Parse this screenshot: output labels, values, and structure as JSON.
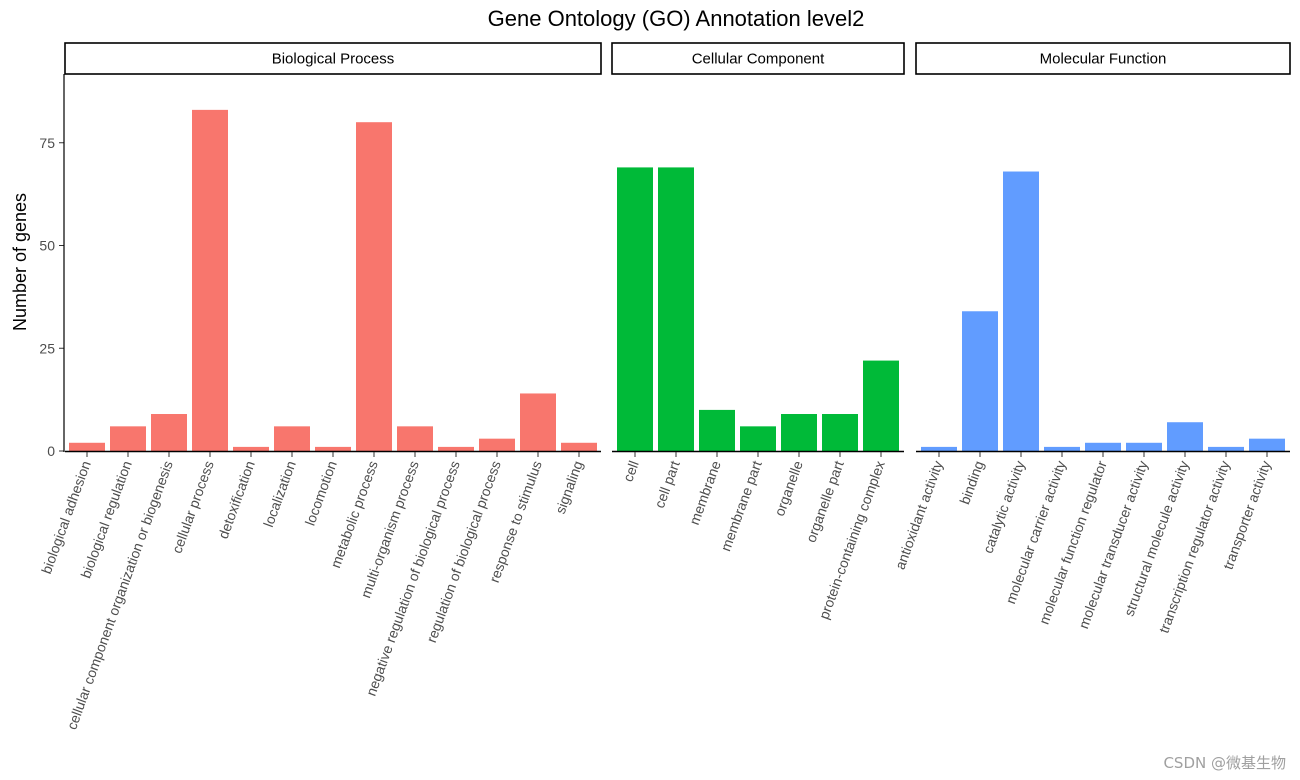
{
  "chart_data": {
    "type": "bar",
    "title": "Gene Ontology (GO) Annotation level2",
    "xlabel": "",
    "ylabel": "Number of genes",
    "ylim": [
      0,
      93
    ],
    "yticks": [
      0,
      25,
      50,
      75
    ],
    "grid": false,
    "legend": "none",
    "facets": [
      {
        "name": "Biological Process",
        "color": "#F8766D",
        "categories": [
          "biological adhesion",
          "biological regulation",
          "cellular component organization or biogenesis",
          "cellular process",
          "detoxification",
          "localization",
          "locomotion",
          "metabolic process",
          "multi-organism process",
          "negative regulation of biological process",
          "regulation of biological process",
          "response to stimulus",
          "signaling"
        ],
        "values": [
          2,
          6,
          9,
          83,
          1,
          6,
          1,
          80,
          6,
          1,
          3,
          14,
          2
        ]
      },
      {
        "name": "Cellular Component",
        "color": "#00BA38",
        "categories": [
          "cell",
          "cell part",
          "membrane",
          "membrane part",
          "organelle",
          "organelle part",
          "protein-containing complex"
        ],
        "values": [
          69,
          69,
          10,
          6,
          9,
          9,
          22
        ]
      },
      {
        "name": "Molecular Function",
        "color": "#619CFF",
        "categories": [
          "antioxidant activity",
          "binding",
          "catalytic activity",
          "molecular carrier activity",
          "molecular function regulator",
          "molecular transducer activity",
          "structural molecule activity",
          "transcription regulator activity",
          "transporter activity"
        ],
        "values": [
          1,
          34,
          68,
          1,
          2,
          2,
          7,
          1,
          3
        ]
      }
    ]
  },
  "watermark": "CSDN @微基生物"
}
